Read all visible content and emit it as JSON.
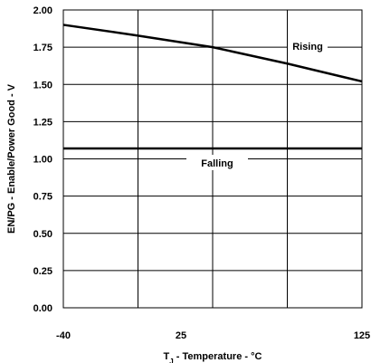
{
  "chart_data": {
    "type": "line",
    "xlabel_main": "T",
    "xlabel_sub": "J",
    "xlabel_rest": " - Temperature - °C",
    "ylabel": "EN/PG - Enable/Power Good - V",
    "xlim": [
      -40,
      125
    ],
    "ylim": [
      0,
      2.0
    ],
    "x_tick_labels": [
      "-40",
      "25",
      "125"
    ],
    "x_tick_values": [
      -40,
      25,
      125
    ],
    "x_grid_values": [
      -40,
      1.25,
      42.5,
      83.75,
      125
    ],
    "y_tick_labels": [
      "0.00",
      "0.25",
      "0.50",
      "0.75",
      "1.00",
      "1.25",
      "1.50",
      "1.75",
      "2.00"
    ],
    "y_tick_values": [
      0,
      0.25,
      0.5,
      0.75,
      1.0,
      1.25,
      1.5,
      1.75,
      2.0
    ],
    "grid": true,
    "series": [
      {
        "name": "Rising",
        "x": [
          -40,
          0,
          42.5,
          83.75,
          125
        ],
        "y": [
          1.9,
          1.83,
          1.75,
          1.64,
          1.52
        ]
      },
      {
        "name": "Falling",
        "x": [
          -40,
          125
        ],
        "y": [
          1.07,
          1.07
        ]
      }
    ]
  }
}
